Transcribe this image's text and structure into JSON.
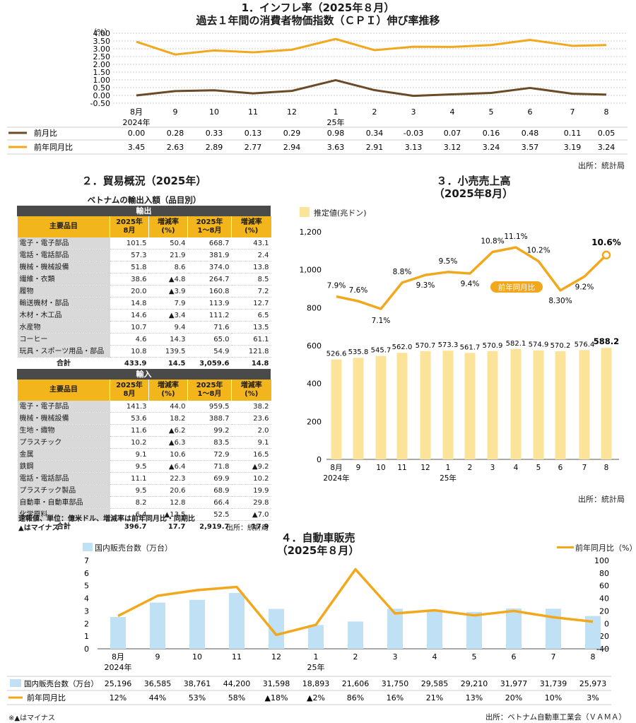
{
  "cpi": {
    "title_line1": "1．インフレ率（2025年８月）",
    "title_line2": "過去１年間の消費者物価指数（ＣＰＩ）伸び率推移",
    "unit": "（%）",
    "source": "出所：統計局",
    "chart_data": {
      "type": "line",
      "x": [
        "8月",
        "9",
        "10",
        "11",
        "12",
        "1",
        "2",
        "3",
        "4",
        "5",
        "6",
        "7",
        "8"
      ],
      "x_sublabels": [
        "2024年",
        "",
        "",
        "",
        "",
        "25年",
        "",
        "",
        "",
        "",
        "",
        "",
        ""
      ],
      "ylim": [
        -0.5,
        4.0
      ],
      "yticks": [
        "4.00",
        "3.50",
        "3.00",
        "2.50",
        "2.00",
        "1.50",
        "1.00",
        "0.50",
        "0.00",
        "-0.50"
      ],
      "series": [
        {
          "name": "前月比",
          "color": "#6b4a26",
          "values": [
            0.0,
            0.28,
            0.33,
            0.13,
            0.29,
            0.98,
            0.34,
            -0.03,
            0.07,
            0.16,
            0.48,
            0.11,
            0.05
          ],
          "labels": [
            "0.00",
            "0.28",
            "0.33",
            "0.13",
            "0.29",
            "0.98",
            "0.34",
            "-0.03",
            "0.07",
            "0.16",
            "0.48",
            "0.11",
            "0.05"
          ]
        },
        {
          "name": "前年同月比",
          "color": "#f2a81c",
          "values": [
            3.45,
            2.63,
            2.89,
            2.77,
            2.94,
            3.63,
            2.91,
            3.13,
            3.12,
            3.24,
            3.57,
            3.19,
            3.24
          ],
          "labels": [
            "3.45",
            "2.63",
            "2.89",
            "2.77",
            "2.94",
            "3.63",
            "2.91",
            "3.13",
            "3.12",
            "3.24",
            "3.57",
            "3.19",
            "3.24"
          ]
        }
      ]
    }
  },
  "trade": {
    "title": "２．貿易概況（2025年）",
    "subtitle": "ベトナムの輸出入額（品目別）",
    "export_label": "輸出",
    "import_label": "輸入",
    "headers": [
      "主要品目",
      "2025年\n8月",
      "増減率\n(%)",
      "2025年\n1～8月",
      "増減率\n(%)"
    ],
    "exports": [
      [
        "電子・電子部品",
        "101.5",
        "50.4",
        "668.7",
        "43.1"
      ],
      [
        "電話・電話部品",
        "57.3",
        "21.9",
        "381.9",
        "2.4"
      ],
      [
        "機械・機械設備",
        "51.8",
        "8.6",
        "374.0",
        "13.8"
      ],
      [
        "繊維・衣類",
        "38.6",
        "▲4.8",
        "264.7",
        "8.5"
      ],
      [
        "履物",
        "20.0",
        "▲3.9",
        "160.8",
        "7.2"
      ],
      [
        "輸送機材・部品",
        "14.8",
        "7.9",
        "113.9",
        "12.7"
      ],
      [
        "木材・木工品",
        "14.6",
        "▲3.4",
        "111.2",
        "6.5"
      ],
      [
        "水産物",
        "10.7",
        "9.4",
        "71.6",
        "13.5"
      ],
      [
        "コーヒー",
        "4.6",
        "14.3",
        "65.0",
        "61.1"
      ],
      [
        "玩具・スポーツ用品・部品",
        "10.8",
        "139.5",
        "54.9",
        "121.8"
      ]
    ],
    "export_total": [
      "合計",
      "433.9",
      "14.5",
      "3,059.6",
      "14.8"
    ],
    "imports": [
      [
        "電子・電子部品",
        "141.3",
        "44.0",
        "959.5",
        "38.2"
      ],
      [
        "機械・機械設備",
        "53.6",
        "18.2",
        "388.7",
        "23.6"
      ],
      [
        "生地・織物",
        "11.6",
        "▲6.2",
        "99.2",
        "2.0"
      ],
      [
        "プラスチック",
        "10.2",
        "▲6.3",
        "83.5",
        "9.1"
      ],
      [
        "金属",
        "9.1",
        "10.6",
        "72.9",
        "16.5"
      ],
      [
        "鉄鋼",
        "9.5",
        "▲6.4",
        "71.8",
        "▲9.2"
      ],
      [
        "電話・電話部品",
        "11.1",
        "22.3",
        "69.9",
        "10.2"
      ],
      [
        "プラスチック製品",
        "9.5",
        "20.6",
        "68.9",
        "19.9"
      ],
      [
        "自動車・自動車部品",
        "8.2",
        "12.8",
        "66.4",
        "29.8"
      ],
      [
        "化学原料",
        "6.4",
        "▲13.5",
        "52.5",
        "▲7.0"
      ]
    ],
    "import_total": [
      "合計",
      "396.7",
      "17.7",
      "2,919.7",
      "17.9"
    ],
    "note1": "速報値、単位：億米ドル、増減率は前年同月比・同期比",
    "note2": "▲はマイナス",
    "source": "出所：統計局"
  },
  "retail": {
    "title_line1": "３．小売売上高",
    "title_line2": "（2025年8月）",
    "legend_bar": "推定値(兆ドン)",
    "line_label": "前年同月比",
    "source": "出所：統計局",
    "chart_data": {
      "type": "bar",
      "categories": [
        "8月",
        "9",
        "10",
        "11",
        "12",
        "1",
        "2",
        "3",
        "4",
        "5",
        "6",
        "7",
        "8"
      ],
      "sublabels": [
        "2024年",
        "",
        "",
        "",
        "",
        "25年",
        "",
        "",
        "",
        "",
        "",
        "",
        ""
      ],
      "ylim": [
        0,
        1200
      ],
      "yticks": [
        "0",
        "200",
        "400",
        "600",
        "800",
        "1,000",
        "1,200"
      ],
      "bar_color": "#fbe49a",
      "line_color": "#f2a81c",
      "values": [
        526.6,
        535.8,
        545.7,
        562.0,
        570.7,
        573.3,
        561.7,
        570.9,
        582.1,
        574.9,
        570.2,
        576.4,
        588.2
      ],
      "value_labels": [
        "526.6",
        "535.8",
        "545.7",
        "562.0",
        "570.7",
        "573.3",
        "561.7",
        "570.9",
        "582.1",
        "574.9",
        "570.2",
        "576.4",
        "588.2"
      ],
      "yoy": [
        7.9,
        7.6,
        7.1,
        8.8,
        9.3,
        9.5,
        9.4,
        10.8,
        11.1,
        10.2,
        8.3,
        9.2,
        10.6
      ],
      "yoy_labels": [
        "7.9%",
        "7.6%",
        "7.1%",
        "8.8%",
        "9.3%",
        "9.5%",
        "9.4%",
        "10.8%",
        "11.1%",
        "10.2%",
        "8.30%",
        "9.2%",
        "10.6%"
      ]
    }
  },
  "auto": {
    "title_line1": "４．自動車販売",
    "title_line2": "（2025年８月）",
    "legend_bar": "国内販売台数（万台）",
    "legend_line": "前年同月比（%）",
    "table_bar_label": "国内販売台数（万台）",
    "table_line_label": "前年同月比",
    "note": "※▲はマイナス",
    "source": "出所：ベトナム自動車工業会（ＶＡＭＡ）",
    "chart_data": {
      "type": "bar",
      "categories": [
        "8月",
        "9",
        "10",
        "11",
        "12",
        "1",
        "2",
        "3",
        "4",
        "5",
        "6",
        "7",
        "8"
      ],
      "sublabels": [
        "2024年",
        "",
        "",
        "",
        "",
        "25年",
        "",
        "",
        "",
        "",
        "",
        "",
        ""
      ],
      "ylim_left": [
        0,
        7
      ],
      "ylim_right": [
        -40,
        100
      ],
      "yticks_left": [
        "0",
        "1",
        "2",
        "3",
        "4",
        "5",
        "6",
        "7"
      ],
      "yticks_right": [
        "-40",
        "-20",
        "0",
        "20",
        "40",
        "60",
        "80",
        "100"
      ],
      "bar_color": "#bfe0f5",
      "line_color": "#f2a81c",
      "units": [
        25196,
        36585,
        38761,
        44200,
        31598,
        18893,
        21606,
        31750,
        29585,
        29210,
        31977,
        31739,
        25973
      ],
      "unit_labels": [
        "25,196",
        "36,585",
        "38,761",
        "44,200",
        "31,598",
        "18,893",
        "21,606",
        "31,750",
        "29,585",
        "29,210",
        "31,977",
        "31,739",
        "25,973"
      ],
      "yoy": [
        12,
        44,
        53,
        58,
        -18,
        -2,
        86,
        16,
        21,
        13,
        20,
        10,
        3
      ],
      "yoy_labels": [
        "12%",
        "44%",
        "53%",
        "58%",
        "▲18%",
        "▲2%",
        "86%",
        "16%",
        "21%",
        "13%",
        "20%",
        "10%",
        "3%"
      ]
    }
  }
}
